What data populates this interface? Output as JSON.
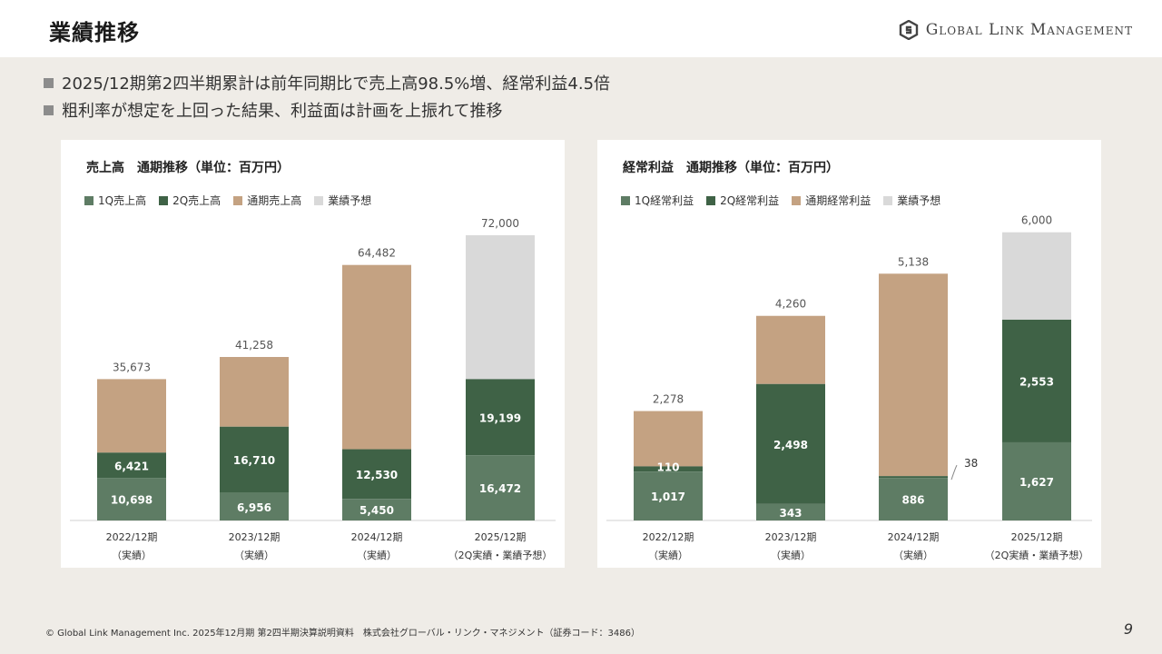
{
  "header": {
    "title": "業績推移",
    "logo_text": "Global Link Management"
  },
  "bullets": [
    "2025/12期第2四半期累計は前年同期比で売上高98.5%増、経常利益4.5倍",
    "粗利率が想定を上回った結果、利益面は計画を上振れて推移"
  ],
  "colors": {
    "q1": "#5E7C64",
    "q2": "#3F6246",
    "full": "#C4A282",
    "forecast": "#D9D9D9"
  },
  "chart_data": [
    {
      "type": "bar",
      "title": "売上高　通期推移（単位：百万円）",
      "legend": [
        "1Q売上高",
        "2Q売上高",
        "通期売上高",
        "業績予想"
      ],
      "categories": [
        "2022/12期",
        "2023/12期",
        "2024/12期",
        "2025/12期"
      ],
      "category_sub": [
        "（実績）",
        "（実績）",
        "（実績）",
        "（2Q実績・業績予想）"
      ],
      "ylim": [
        0,
        80000
      ],
      "bars": [
        {
          "q1": 10698,
          "q2": 6421,
          "total": 35673,
          "forecast": false
        },
        {
          "q1": 6956,
          "q2": 16710,
          "total": 41258,
          "forecast": false
        },
        {
          "q1": 5450,
          "q2": 12530,
          "total": 64482,
          "forecast": false
        },
        {
          "q1": 16472,
          "q2": 19199,
          "total": 72000,
          "forecast": true
        }
      ],
      "q1_labels": [
        "10,698",
        "6,956",
        "5,450",
        "16,472"
      ],
      "q2_labels": [
        "6,421",
        "16,710",
        "12,530",
        "19,199"
      ],
      "total_labels": [
        "35,673",
        "41,258",
        "64,482",
        "72,000"
      ]
    },
    {
      "type": "bar",
      "title": "経常利益　通期推移（単位：百万円）",
      "legend": [
        "1Q経常利益",
        "2Q経常利益",
        "通期経常利益",
        "業績予想"
      ],
      "categories": [
        "2022/12期",
        "2023/12期",
        "2024/12期",
        "2025/12期"
      ],
      "category_sub": [
        "（実績）",
        "（実績）",
        "（実績）",
        "（2Q実績・業績予想）"
      ],
      "ylim": [
        0,
        6600
      ],
      "bars": [
        {
          "q1": 1017,
          "q2": 110,
          "total": 2278,
          "forecast": false
        },
        {
          "q1": 343,
          "q2": 2498,
          "total": 4260,
          "forecast": false
        },
        {
          "q1": 886,
          "q2": 38,
          "total": 5138,
          "forecast": false
        },
        {
          "q1": 1627,
          "q2": 2553,
          "total": 6000,
          "forecast": true
        }
      ],
      "q1_labels": [
        "1,017",
        "343",
        "886",
        "1,627"
      ],
      "q2_labels": [
        "110",
        "2,498",
        "38",
        "2,553"
      ],
      "total_labels": [
        "2,278",
        "4,260",
        "5,138",
        "6,000"
      ]
    }
  ],
  "footer": {
    "text": "© Global Link Management Inc. 2025年12月期 第2四半期決算説明資料　株式会社グローバル・リンク・マネジメント（証券コード：3486）",
    "page": "9"
  }
}
